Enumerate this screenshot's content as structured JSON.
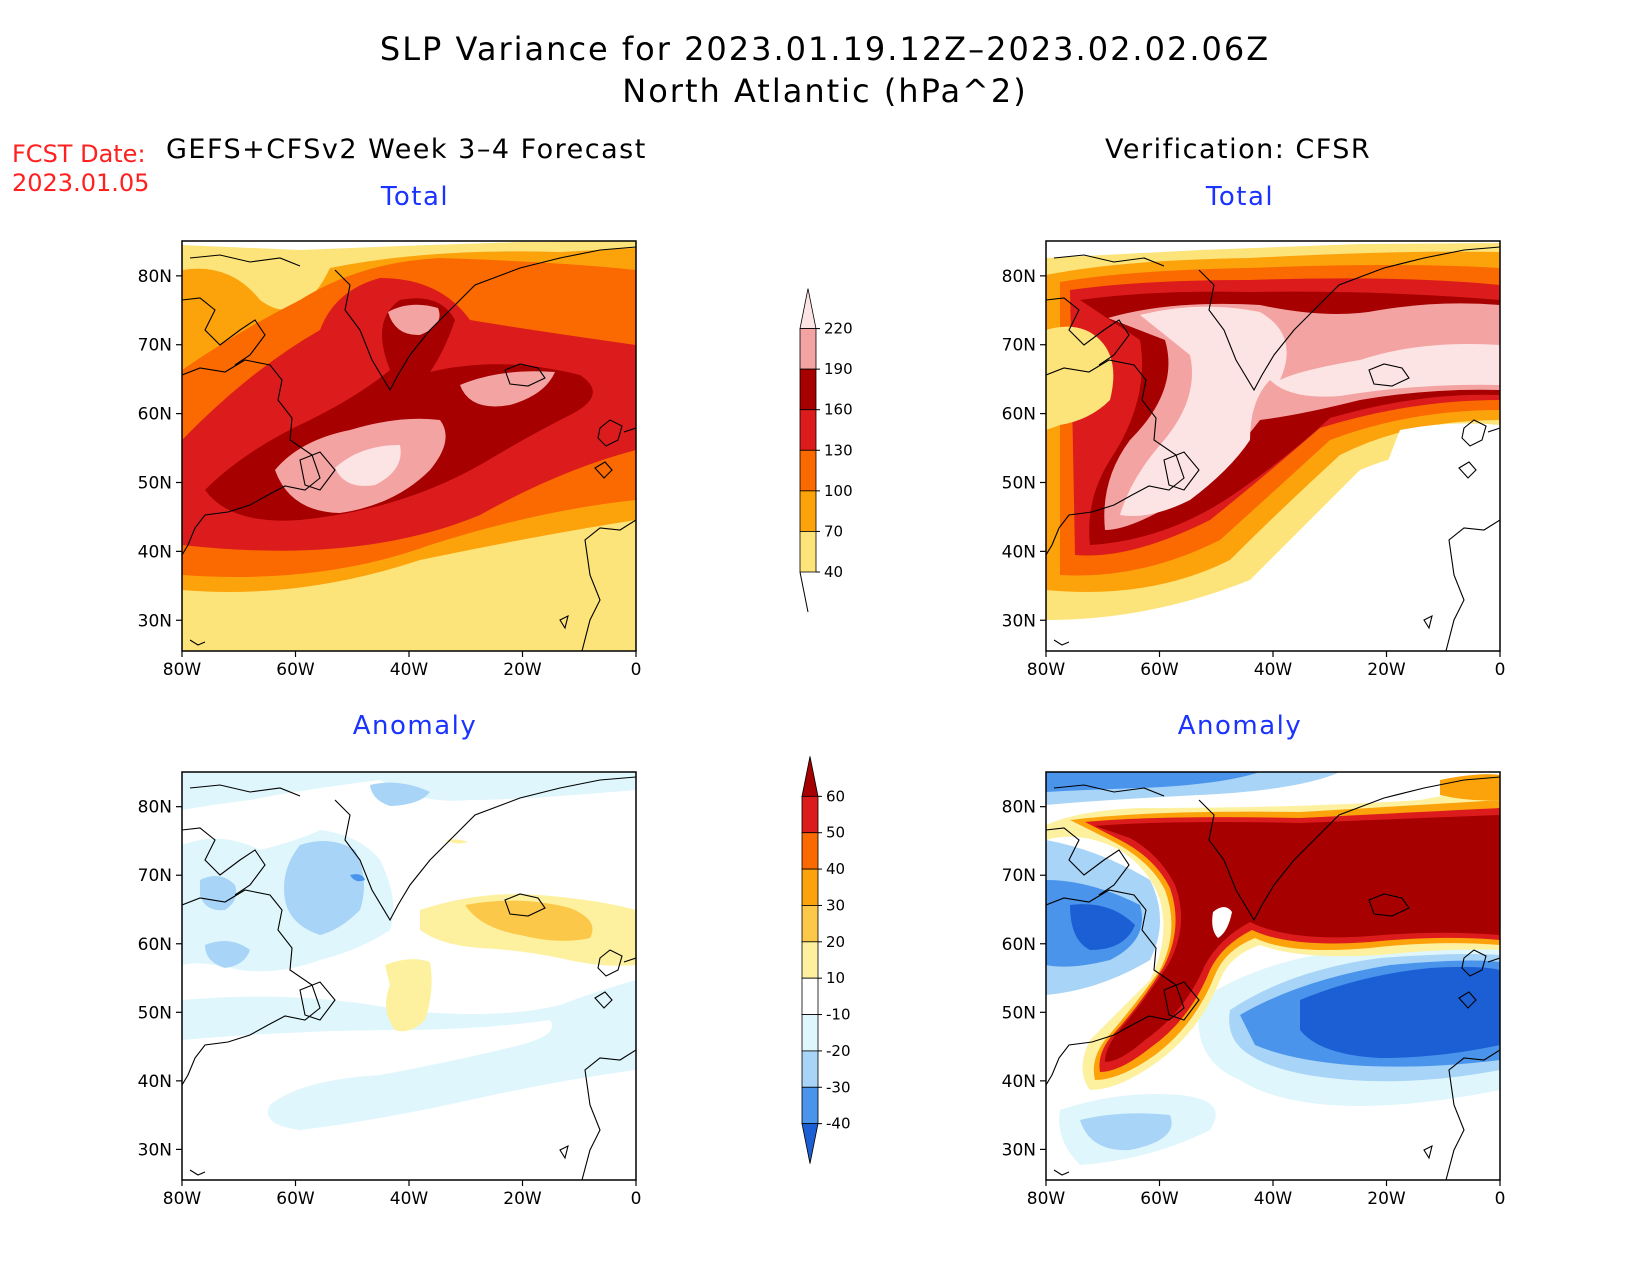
{
  "header": {
    "title": "SLP Variance for 2023.01.19.12Z–2023.02.02.06Z",
    "subtitle": "North Atlantic (hPa^2)",
    "fcst_label": "FCST Date:",
    "fcst_date": "2023.01.05",
    "left_column": "GEFS+CFSv2 Week 3–4 Forecast",
    "right_column": "Verification: CFSR"
  },
  "panels": {
    "fcst_total": {
      "title": "Total"
    },
    "obs_total": {
      "title": "Total"
    },
    "fcst_anom": {
      "title": "Anomaly"
    },
    "obs_anom": {
      "title": "Anomaly"
    }
  },
  "axes": {
    "lat_ticks": [
      "80N",
      "70N",
      "60N",
      "50N",
      "40N",
      "30N"
    ],
    "lon_ticks": [
      "80W",
      "60W",
      "40W",
      "20W",
      "0"
    ]
  },
  "colorbars": {
    "total": {
      "labels": [
        "220",
        "190",
        "160",
        "130",
        "100",
        "70",
        "40"
      ],
      "colors": [
        "#fde4e4",
        "#f4a3a3",
        "#a60000",
        "#dc1c1c",
        "#fb6a00",
        "#fca30c",
        "#fde47a"
      ]
    },
    "anomaly": {
      "labels": [
        "60",
        "50",
        "40",
        "30",
        "20",
        "10",
        "-10",
        "-20",
        "-30",
        "-40"
      ],
      "colors": [
        "#a60000",
        "#dc1c1c",
        "#fb6a00",
        "#fca30c",
        "#fcc84a",
        "#fdf1a0",
        "#ffffff",
        "#dff6fc",
        "#a7d4f7",
        "#4a94ec",
        "#1c5fd4"
      ]
    }
  }
}
